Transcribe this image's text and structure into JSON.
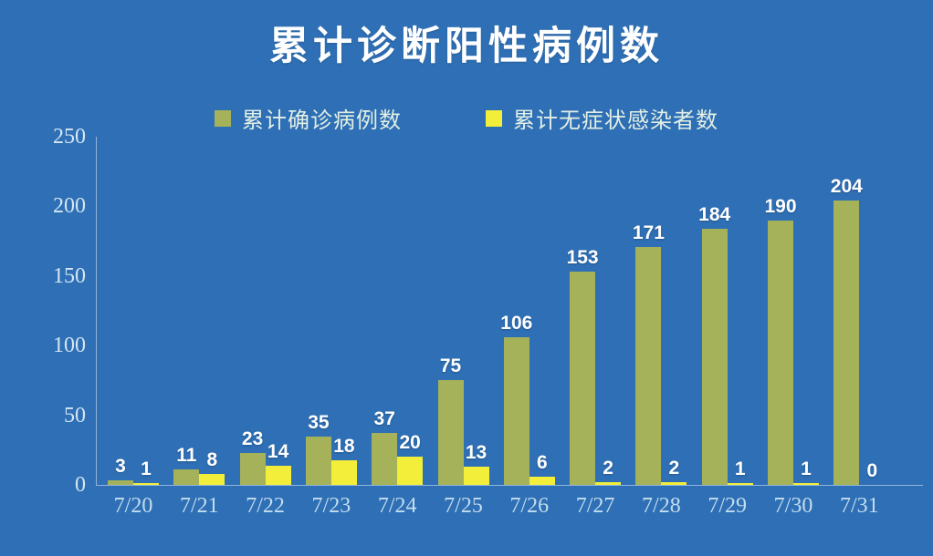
{
  "chart_data": {
    "type": "bar",
    "title": "累计诊断阳性病例数",
    "categories": [
      "7/20",
      "7/21",
      "7/22",
      "7/23",
      "7/24",
      "7/25",
      "7/26",
      "7/27",
      "7/28",
      "7/29",
      "7/30",
      "7/31"
    ],
    "series": [
      {
        "name": "累计确诊病例数",
        "color": "#a6b259",
        "values": [
          3,
          11,
          23,
          35,
          37,
          75,
          106,
          153,
          171,
          184,
          190,
          204
        ]
      },
      {
        "name": "累计无症状感染者数",
        "color": "#f2ee3a",
        "values": [
          1,
          8,
          14,
          18,
          20,
          13,
          6,
          2,
          2,
          1,
          1,
          0
        ]
      }
    ],
    "xlabel": "",
    "ylabel": "",
    "ylim": [
      0,
      250
    ],
    "yticks": [
      0,
      50,
      100,
      150,
      200,
      250
    ],
    "grid": false,
    "legend_position": "top",
    "background_color": "#2e6fb5",
    "value_label_color": "#ffffff",
    "axis_tick_color": "#d5e6f4"
  }
}
